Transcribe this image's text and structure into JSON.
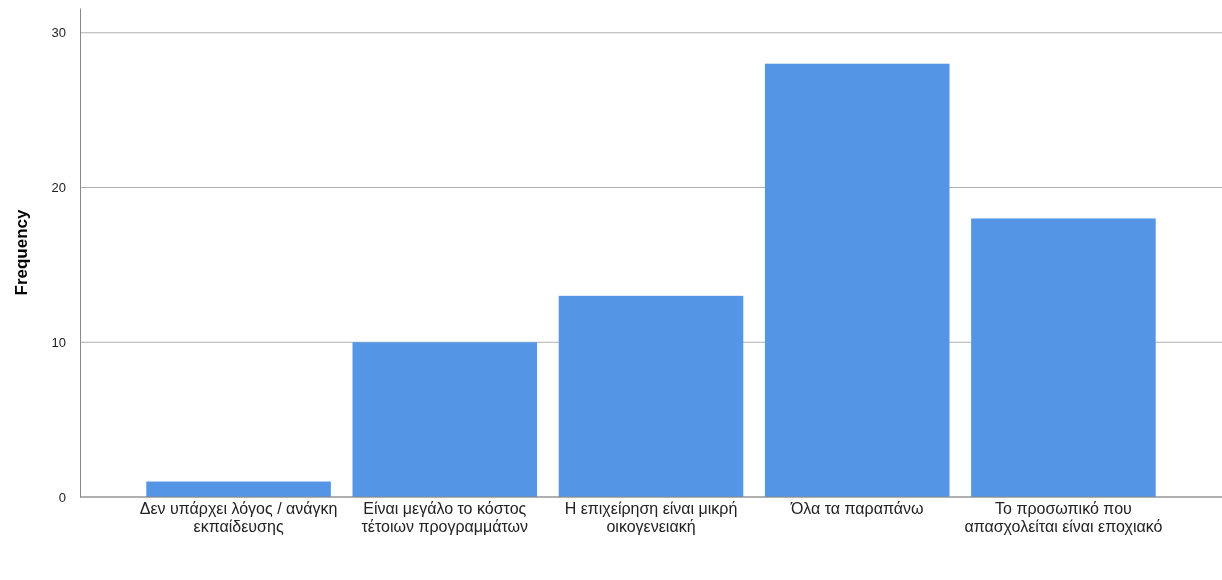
{
  "chart_data": {
    "type": "bar",
    "ylabel": "Frequency",
    "categories": [
      "Δεν υπάρχει λόγος / ανάγκη εκπαίδευσης",
      "Είναι μεγάλο το κόστος τέτοιων προγραμμάτων",
      "Η επιχείρηση είναι μικρή οικογενειακή",
      "Όλα τα παραπάνω",
      "Το προσωπικό που απασχολείται είναι εποχιακό"
    ],
    "values": [
      1,
      10,
      13,
      28,
      18
    ],
    "color": "#5595e5",
    "ylim": [
      0,
      31.6
    ],
    "yticks": [
      0,
      10,
      20,
      30
    ],
    "grid": "y"
  }
}
